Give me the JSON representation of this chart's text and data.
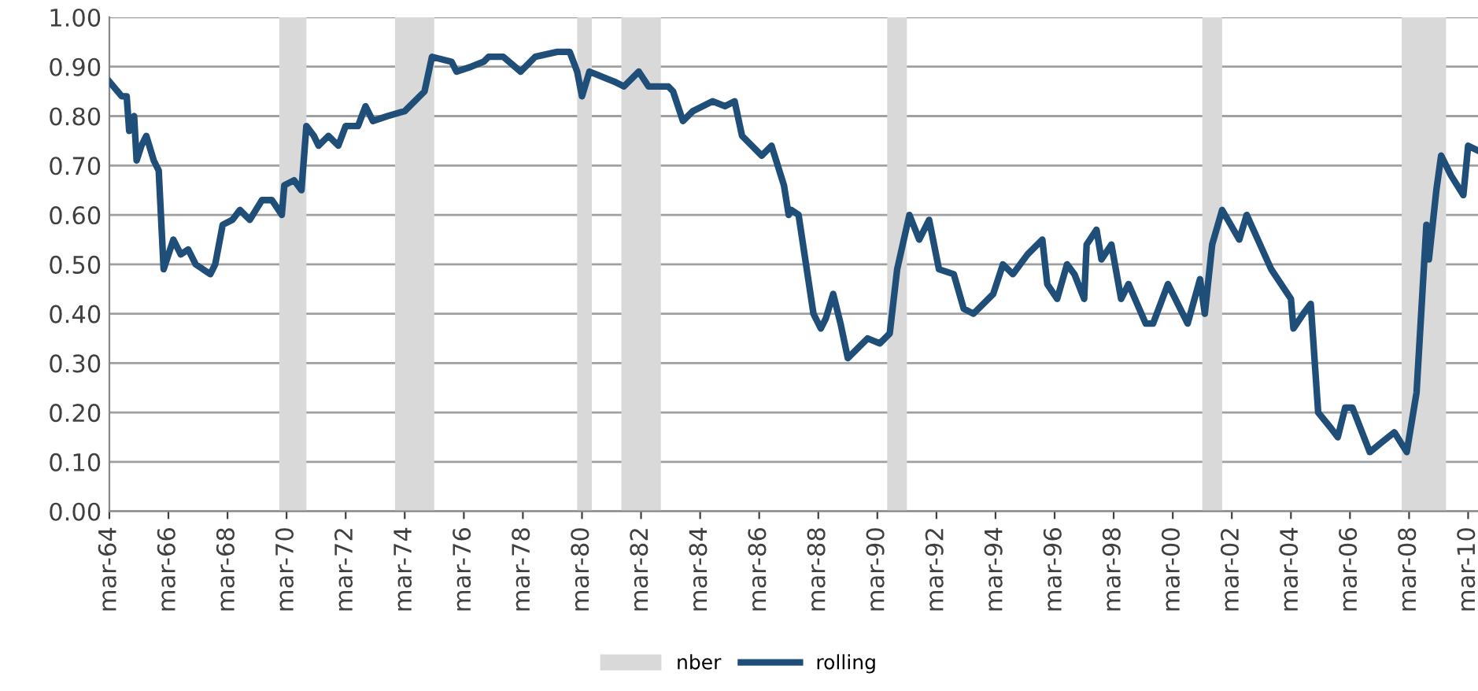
{
  "chart_data": {
    "type": "line",
    "x": [
      "1964-03",
      "1964-08",
      "1964-10",
      "1964-11",
      "1965-01",
      "1965-02",
      "1965-04",
      "1965-06",
      "1965-09",
      "1965-11",
      "1966-01",
      "1966-05",
      "1966-08",
      "1966-11",
      "1967-02",
      "1967-08",
      "1967-10",
      "1968-01",
      "1968-05",
      "1968-08",
      "1968-12",
      "1969-05",
      "1969-09",
      "1970-01",
      "1970-02",
      "1970-06",
      "1970-09",
      "1970-11",
      "1971-02",
      "1971-04",
      "1971-08",
      "1971-12",
      "1972-03",
      "1972-08",
      "1972-11",
      "1973-02",
      "1973-08",
      "1974-03",
      "1974-09",
      "1974-11",
      "1975-02",
      "1975-10",
      "1975-12",
      "1976-06",
      "1976-11",
      "1977-01",
      "1977-07",
      "1978-02",
      "1978-08",
      "1979-05",
      "1979-10",
      "1980-01",
      "1980-03",
      "1980-06",
      "1980-11",
      "1981-04",
      "1981-08",
      "1982-02",
      "1982-06",
      "1983-02",
      "1983-04",
      "1983-08",
      "1983-12",
      "1984-08",
      "1985-01",
      "1985-05",
      "1985-08",
      "1986-04",
      "1986-08",
      "1987-01",
      "1987-03",
      "1987-04",
      "1987-07",
      "1988-01",
      "1988-04",
      "1988-06",
      "1988-09",
      "1988-12",
      "1989-03",
      "1989-07",
      "1989-11",
      "1990-04",
      "1990-08",
      "1990-11",
      "1991-04",
      "1991-08",
      "1991-12",
      "1992-04",
      "1992-10",
      "1993-02",
      "1993-06",
      "1994-02",
      "1994-06",
      "1994-10",
      "1995-04",
      "1995-10",
      "1995-12",
      "1996-04",
      "1996-08",
      "1996-11",
      "1997-03",
      "1997-04",
      "1997-08",
      "1997-10",
      "1998-02",
      "1998-06",
      "1998-09",
      "1999-04",
      "1999-07",
      "2000-01",
      "2000-09",
      "2001-02",
      "2001-04",
      "2001-07",
      "2001-11",
      "2002-06",
      "2002-09",
      "2003-07",
      "2004-03",
      "2004-04",
      "2004-08",
      "2004-11",
      "2005-02",
      "2005-07",
      "2005-10",
      "2006-01",
      "2006-04",
      "2006-11",
      "2007-04",
      "2007-09",
      "2008-02",
      "2008-06",
      "2008-10",
      "2008-11",
      "2009-02",
      "2009-04",
      "2009-08",
      "2010-01",
      "2010-03",
      "2010-07"
    ],
    "series": [
      {
        "name": "rolling",
        "color": "#1f4e79",
        "values": [
          0.87,
          0.84,
          0.84,
          0.77,
          0.8,
          0.71,
          0.74,
          0.76,
          0.71,
          0.69,
          0.49,
          0.55,
          0.52,
          0.53,
          0.5,
          0.48,
          0.5,
          0.58,
          0.59,
          0.61,
          0.59,
          0.63,
          0.63,
          0.6,
          0.66,
          0.67,
          0.65,
          0.78,
          0.76,
          0.74,
          0.76,
          0.74,
          0.78,
          0.78,
          0.82,
          0.79,
          0.8,
          0.81,
          0.84,
          0.85,
          0.92,
          0.91,
          0.89,
          0.9,
          0.91,
          0.92,
          0.92,
          0.89,
          0.92,
          0.93,
          0.93,
          0.89,
          0.84,
          0.89,
          0.88,
          0.87,
          0.86,
          0.89,
          0.86,
          0.86,
          0.85,
          0.79,
          0.81,
          0.83,
          0.82,
          0.83,
          0.76,
          0.72,
          0.74,
          0.66,
          0.6,
          0.61,
          0.6,
          0.4,
          0.37,
          0.39,
          0.44,
          0.38,
          0.31,
          0.33,
          0.35,
          0.34,
          0.36,
          0.49,
          0.6,
          0.55,
          0.59,
          0.49,
          0.48,
          0.41,
          0.4,
          0.44,
          0.5,
          0.48,
          0.52,
          0.55,
          0.46,
          0.43,
          0.5,
          0.48,
          0.43,
          0.54,
          0.57,
          0.51,
          0.54,
          0.43,
          0.46,
          0.38,
          0.38,
          0.46,
          0.38,
          0.47,
          0.4,
          0.54,
          0.61,
          0.55,
          0.6,
          0.49,
          0.43,
          0.37,
          0.4,
          0.42,
          0.2,
          0.17,
          0.15,
          0.21,
          0.21,
          0.12,
          0.14,
          0.16,
          0.12,
          0.24,
          0.58,
          0.51,
          0.65,
          0.72,
          0.68,
          0.64,
          0.74,
          0.73
        ]
      }
    ],
    "bands": [
      {
        "axis": "x",
        "from": "1969-12",
        "to": "1970-11",
        "label": "nber",
        "color": "#d9d9d9"
      },
      {
        "axis": "x",
        "from": "1973-11",
        "to": "1975-03",
        "color": "#d9d9d9"
      },
      {
        "axis": "x",
        "from": "1980-01",
        "to": "1980-07",
        "color": "#d9d9d9"
      },
      {
        "axis": "x",
        "from": "1981-07",
        "to": "1982-11",
        "color": "#d9d9d9"
      },
      {
        "axis": "x",
        "from": "1990-07",
        "to": "1991-03",
        "color": "#d9d9d9"
      },
      {
        "axis": "x",
        "from": "2001-03",
        "to": "2001-11",
        "color": "#d9d9d9"
      },
      {
        "axis": "x",
        "from": "2007-12",
        "to": "2009-06",
        "color": "#d9d9d9"
      }
    ],
    "xlim": [
      "1964-03",
      "2010-07"
    ],
    "xticks": [
      {
        "value": "1964-03",
        "label": "mar-64"
      },
      {
        "value": "1966-03",
        "label": "mar-66"
      },
      {
        "value": "1968-03",
        "label": "mar-68"
      },
      {
        "value": "1970-03",
        "label": "mar-70"
      },
      {
        "value": "1972-03",
        "label": "mar-72"
      },
      {
        "value": "1974-03",
        "label": "mar-74"
      },
      {
        "value": "1976-03",
        "label": "mar-76"
      },
      {
        "value": "1978-03",
        "label": "mar-78"
      },
      {
        "value": "1980-03",
        "label": "mar-80"
      },
      {
        "value": "1982-03",
        "label": "mar-82"
      },
      {
        "value": "1984-03",
        "label": "mar-84"
      },
      {
        "value": "1986-03",
        "label": "mar-86"
      },
      {
        "value": "1988-03",
        "label": "mar-88"
      },
      {
        "value": "1990-03",
        "label": "mar-90"
      },
      {
        "value": "1992-03",
        "label": "mar-92"
      },
      {
        "value": "1994-03",
        "label": "mar-94"
      },
      {
        "value": "1996-03",
        "label": "mar-96"
      },
      {
        "value": "1998-03",
        "label": "mar-98"
      },
      {
        "value": "2000-03",
        "label": "mar-00"
      },
      {
        "value": "2002-03",
        "label": "mar-02"
      },
      {
        "value": "2004-03",
        "label": "mar-04"
      },
      {
        "value": "2006-03",
        "label": "mar-06"
      },
      {
        "value": "2008-03",
        "label": "mar-08"
      },
      {
        "value": "2010-03",
        "label": "mar-10"
      }
    ],
    "ylim": [
      0,
      1
    ],
    "yticks": [
      {
        "value": 0,
        "label": "0.00"
      },
      {
        "value": 0.1,
        "label": "0.10"
      },
      {
        "value": 0.2,
        "label": "0.20"
      },
      {
        "value": 0.3,
        "label": "0.30"
      },
      {
        "value": 0.4,
        "label": "0.40"
      },
      {
        "value": 0.5,
        "label": "0.50"
      },
      {
        "value": 0.6,
        "label": "0.60"
      },
      {
        "value": 0.7,
        "label": "0.70"
      },
      {
        "value": 0.8,
        "label": "0.80"
      },
      {
        "value": 0.9,
        "label": "0.90"
      },
      {
        "value": 1,
        "label": "1.00"
      }
    ],
    "grid": "y",
    "legend": "bottom",
    "marker": "none",
    "line_style": "solid"
  }
}
